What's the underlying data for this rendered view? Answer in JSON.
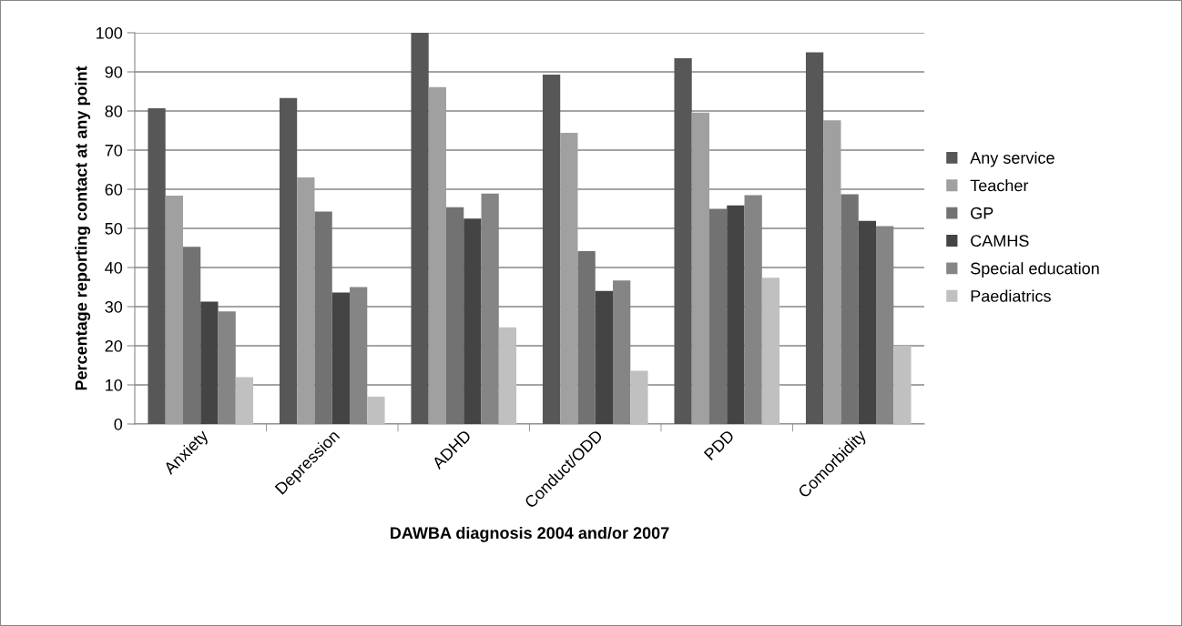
{
  "chart_data": {
    "type": "bar",
    "xlabel": "DAWBA diagnosis 2004 and/or 2007",
    "ylabel": "Percentage reporting contact at any point",
    "categories": [
      "Anxiety",
      "Depression",
      "ADHD",
      "Conduct/ODD",
      "PDD",
      "Comorbidity"
    ],
    "series": [
      {
        "name": "Any service",
        "color": "#575757",
        "values": [
          80.7,
          83.3,
          100,
          89.3,
          93.5,
          95
        ]
      },
      {
        "name": "Teacher",
        "color": "#a0a0a0",
        "values": [
          58.4,
          63,
          86.1,
          74.4,
          79.6,
          77.6
        ]
      },
      {
        "name": "GP",
        "color": "#727272",
        "values": [
          45.3,
          54.3,
          55.4,
          44.2,
          55,
          58.7
        ]
      },
      {
        "name": "CAMHS",
        "color": "#444444",
        "values": [
          31.3,
          33.6,
          52.5,
          34,
          55.9,
          51.9
        ]
      },
      {
        "name": "Special education",
        "color": "#858585",
        "values": [
          28.8,
          35,
          58.9,
          36.7,
          58.5,
          50.6
        ]
      },
      {
        "name": "Paediatrics",
        "color": "#c0c0c0",
        "values": [
          12,
          7,
          24.7,
          13.6,
          37.4,
          20
        ]
      }
    ],
    "ylim": [
      0,
      100
    ],
    "yticks": [
      0,
      10,
      20,
      30,
      40,
      50,
      60,
      70,
      80,
      90,
      100
    ],
    "grid": "y",
    "legend": "right"
  }
}
